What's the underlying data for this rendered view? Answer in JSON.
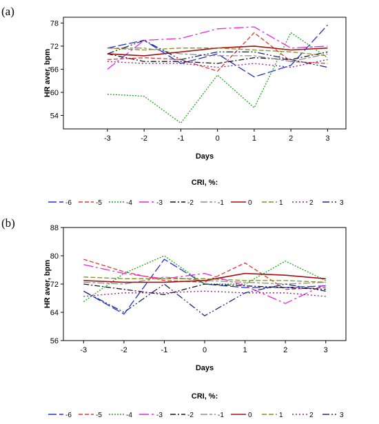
{
  "chart_data": [
    {
      "panel": "(a)",
      "type": "line",
      "xlabel": "Days",
      "ylabel": "HR aver, bpm",
      "x": [
        -3,
        -2,
        -1,
        0,
        1,
        2,
        3
      ],
      "xlim": [
        -4.2,
        3.5
      ],
      "ylim": [
        50.5,
        79.5
      ],
      "yticks": [
        54,
        60,
        66,
        72,
        78
      ],
      "legend_title": "CRI, %:",
      "series": [
        {
          "name": "-6",
          "color": "#1f2fd6",
          "values": [
            71.5,
            73.5,
            67.5,
            70.0,
            64.0,
            67.0,
            77.5
          ]
        },
        {
          "name": "-5",
          "color": "#e8342c",
          "values": [
            68.5,
            69.0,
            68.5,
            65.5,
            75.5,
            68.0,
            67.5
          ]
        },
        {
          "name": "-4",
          "color": "#1aa31a",
          "values": [
            59.5,
            59.0,
            52.0,
            64.5,
            56.0,
            75.5,
            69.0
          ]
        },
        {
          "name": "-3",
          "color": "#e824e0",
          "values": [
            66.0,
            73.5,
            74.0,
            76.5,
            77.0,
            71.5,
            72.0
          ]
        },
        {
          "name": "-2",
          "color": "#111111",
          "values": [
            70.0,
            68.0,
            68.0,
            67.5,
            69.0,
            68.5,
            70.5
          ]
        },
        {
          "name": "-1",
          "color": "#8c8c8c",
          "values": [
            71.5,
            71.5,
            70.0,
            69.5,
            69.5,
            68.0,
            70.0
          ]
        },
        {
          "name": "0",
          "color": "#a01010",
          "values": [
            70.0,
            69.5,
            70.5,
            71.5,
            72.0,
            71.0,
            71.5
          ]
        },
        {
          "name": "1",
          "color": "#8a8a1a",
          "values": [
            71.5,
            71.0,
            71.5,
            71.5,
            71.0,
            70.5,
            69.5
          ]
        },
        {
          "name": "2",
          "color": "#8a1a8a",
          "values": [
            68.0,
            67.5,
            67.5,
            66.5,
            67.5,
            66.5,
            68.5
          ]
        },
        {
          "name": "3",
          "color": "#182a6e",
          "values": [
            70.0,
            73.5,
            68.5,
            70.5,
            70.5,
            68.5,
            66.5
          ]
        }
      ]
    },
    {
      "panel": "(b)",
      "type": "line",
      "xlabel": "Days",
      "ylabel": "HR aver, bpm",
      "x": [
        -3,
        -2,
        -1,
        0,
        1,
        2,
        3
      ],
      "xlim": [
        -3.5,
        3.5
      ],
      "ylim": [
        56,
        88
      ],
      "yticks": [
        56,
        64,
        72,
        80,
        88
      ],
      "legend_title": "CRI, %:",
      "series": [
        {
          "name": "-6",
          "color": "#1f2fd6",
          "values": [
            70.0,
            63.5,
            79.0,
            72.0,
            71.0,
            71.0,
            71.5
          ]
        },
        {
          "name": "-5",
          "color": "#e8342c",
          "values": [
            79.0,
            75.5,
            73.0,
            72.5,
            78.0,
            70.5,
            71.0
          ]
        },
        {
          "name": "-4",
          "color": "#1aa31a",
          "values": [
            67.0,
            75.0,
            80.0,
            72.0,
            72.0,
            78.5,
            73.0
          ]
        },
        {
          "name": "-3",
          "color": "#e824e0",
          "values": [
            77.5,
            75.0,
            73.5,
            75.0,
            71.5,
            66.5,
            72.0
          ]
        },
        {
          "name": "-2",
          "color": "#111111",
          "values": [
            72.0,
            70.5,
            69.0,
            72.0,
            71.5,
            71.0,
            70.5
          ]
        },
        {
          "name": "-1",
          "color": "#8c8c8c",
          "values": [
            72.5,
            72.0,
            74.0,
            73.0,
            72.5,
            72.0,
            72.5
          ]
        },
        {
          "name": "0",
          "color": "#a01010",
          "values": [
            73.0,
            72.5,
            72.5,
            73.0,
            75.0,
            74.5,
            73.5
          ]
        },
        {
          "name": "1",
          "color": "#8a8a1a",
          "values": [
            74.0,
            73.5,
            73.5,
            73.5,
            73.0,
            73.0,
            72.5
          ]
        },
        {
          "name": "2",
          "color": "#8a1a8a",
          "values": [
            68.5,
            69.5,
            69.5,
            70.0,
            69.5,
            69.5,
            68.5
          ]
        },
        {
          "name": "3",
          "color": "#182a6e",
          "values": [
            70.0,
            64.0,
            72.0,
            63.0,
            69.5,
            72.0,
            70.0
          ]
        }
      ]
    }
  ]
}
